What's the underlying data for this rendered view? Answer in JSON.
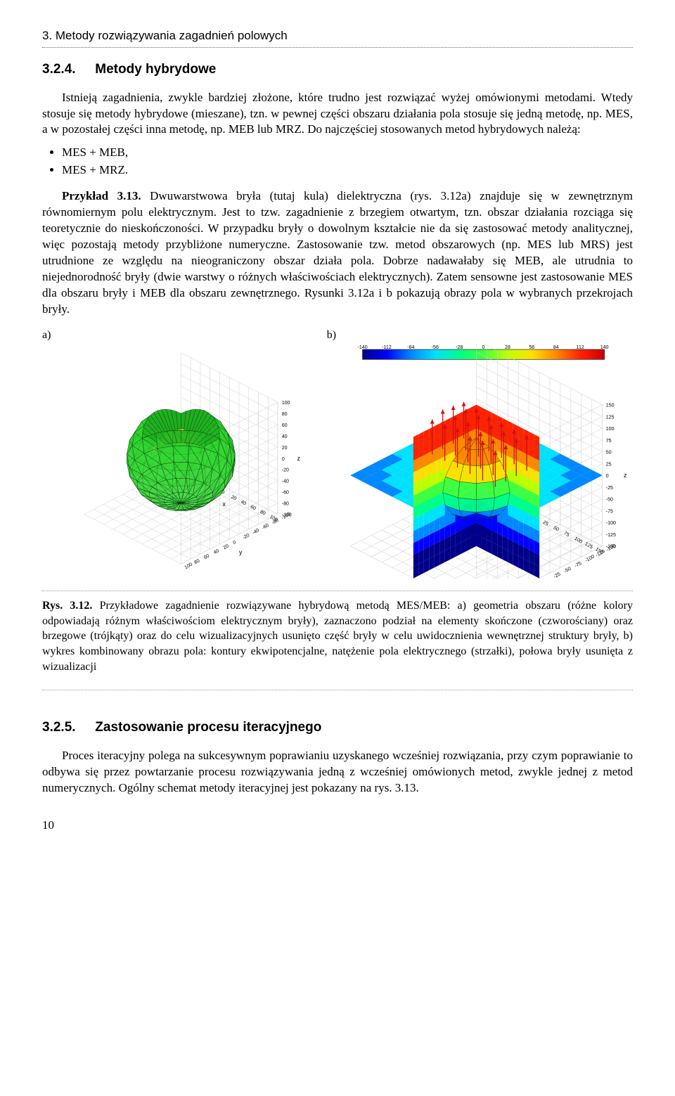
{
  "chapter_heading": "3. Metody rozwiązywania zagadnień polowych",
  "section_324": {
    "number": "3.2.4.",
    "title": "Metody hybrydowe",
    "para1": "Istnieją zagadnienia, zwykle bardziej złożone, które trudno jest rozwiązać wyżej omówionymi metodami. Wtedy stosuje się metody hybrydowe (mieszane), tzn. w pewnej części obszaru działania pola stosuje się jedną metodę, np. MES, a w pozostałej części inna metodę, np. MEB lub MRZ. Do najczęściej stosowanych metod hybrydowych należą:",
    "bullet1": "MES + MEB,",
    "bullet2": "MES + MRZ.",
    "para2": "Przykład 3.13. Dwuwarstwowa bryła (tutaj kula) dielektryczna (rys. 3.12a) znajduje się w zewnętrznym równomiernym polu elektrycznym. Jest to tzw. zagadnienie z brzegiem otwartym, tzn. obszar działania rozciąga się teoretycznie do nieskończoności. W przypadku bryły o dowolnym kształcie nie da się zastosować metody analitycznej, więc pozostają metody przybliżone numeryczne. Zastosowanie tzw. metod obszarowych (np. MES lub MRS) jest utrudnione ze względu na nieograniczony obszar działa pola. Dobrze nadawałaby się MEB, ale utrudnia to niejednorodność bryły (dwie warstwy o różnych właściwościach elektrycznych). Zatem sensowne jest zastosowanie MES dla obszaru bryły i MEB dla obszaru zewnętrznego. Rysunki 3.12a i b pokazują obrazy pola w wybranych przekrojach bryły.",
    "example_bold": "Przykład 3.13."
  },
  "figure_312": {
    "label_a": "a)",
    "label_b": "b)",
    "fig_ref": "Rys. 3.12.",
    "caption": "Przykładowe zagadnienie rozwiązywane hybrydową metodą MES/MEB: a) geometria obszaru (różne kolory odpowiadają różnym właściwościom elektrycznym bryły), zaznaczono podział na elementy skończone (czworościany) oraz brzegowe (trójkąty) oraz do celu wizualizacyjnych usunięto część bryły w celu uwidocznienia wewnętrznej struktury bryły, b) wykres kombinowany obrazu pola: kontury ekwipotencjalne, natężenie pola elektrycznego (strzałki), połowa bryły usunięta z wizualizacji",
    "plot_a": {
      "type": "3d_mesh_sphere",
      "outer_color": "#2bd42b",
      "inner_color": "#e8e84a",
      "mesh_line": "#0a3a0a",
      "grid_color": "#cfcfcf",
      "background": "#ffffff",
      "x_ticks": [
        -100,
        -80,
        -60,
        -40,
        -20,
        0,
        20,
        40,
        60,
        80,
        100
      ],
      "y_ticks": [
        -100,
        -80,
        -60,
        -40,
        -20,
        0,
        20,
        40,
        60,
        80,
        100
      ],
      "z_ticks": [
        -100,
        -80,
        -60,
        -40,
        -20,
        0,
        20,
        40,
        60,
        80,
        100
      ],
      "axis_labels": {
        "x": "x",
        "y": "y",
        "z": "z"
      },
      "tick_fontsize": 7
    },
    "plot_b": {
      "type": "3d_field_slices",
      "colorbar_ticks": [
        -140,
        -112,
        -84,
        -56,
        -28,
        0,
        28,
        56,
        84,
        112,
        140
      ],
      "colorbar_colors": [
        "#000088",
        "#0000ff",
        "#0088ff",
        "#00e0ff",
        "#00ff88",
        "#40ff40",
        "#c0ff00",
        "#ffe000",
        "#ff8800",
        "#ff2200",
        "#cc0000"
      ],
      "x_ticks": [
        -150,
        -125,
        -100,
        -75,
        -50,
        -25,
        0,
        25,
        50,
        75,
        100,
        125,
        150
      ],
      "y_ticks": [
        -150,
        -125,
        -100,
        -75,
        -50,
        -25,
        0,
        25,
        50,
        75,
        100,
        125,
        150
      ],
      "z_ticks": [
        -150,
        -125,
        -100,
        -75,
        -50,
        -25,
        0,
        25,
        50,
        75,
        100,
        125,
        150
      ],
      "axis_labels": {
        "x": "x",
        "y": "y",
        "z": "z"
      },
      "arrow_color": "#d01010",
      "grid_color": "#cfcfcf",
      "background": "#ffffff",
      "tick_fontsize": 7
    }
  },
  "section_325": {
    "number": "3.2.5.",
    "title": "Zastosowanie procesu iteracyjnego",
    "para1": "Proces iteracyjny polega na sukcesywnym poprawianiu uzyskanego wcześniej rozwiązania, przy czym poprawianie to odbywa się przez powtarzanie procesu rozwiązywania jedną z wcześniej omówionych metod, zwykle jednej z metod numerycznych. Ogólny schemat metody iteracyjnej jest pokazany na rys. 3.13."
  },
  "page_number": "10"
}
